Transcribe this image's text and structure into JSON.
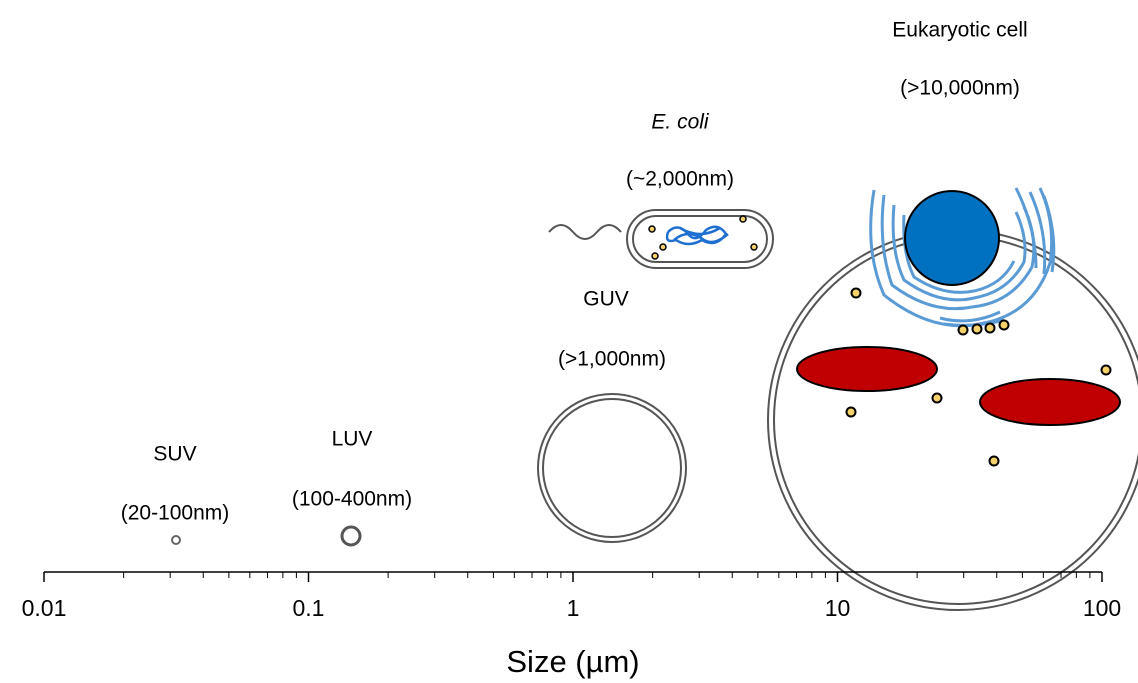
{
  "items": [
    {
      "name": "SUV",
      "size": "(20-100nm)"
    },
    {
      "name": "LUV",
      "size": "(100-400nm)"
    },
    {
      "name": "GUV",
      "size": "(>1,000nm)"
    },
    {
      "name": "E. coli",
      "size": "(~2,000nm)"
    },
    {
      "name": "Eukaryotic cell",
      "size": "(>10,000nm)"
    }
  ],
  "axis": {
    "title": "Size (µm)",
    "ticks": [
      "0.01",
      "0.1",
      "1",
      "10",
      "100"
    ]
  }
}
